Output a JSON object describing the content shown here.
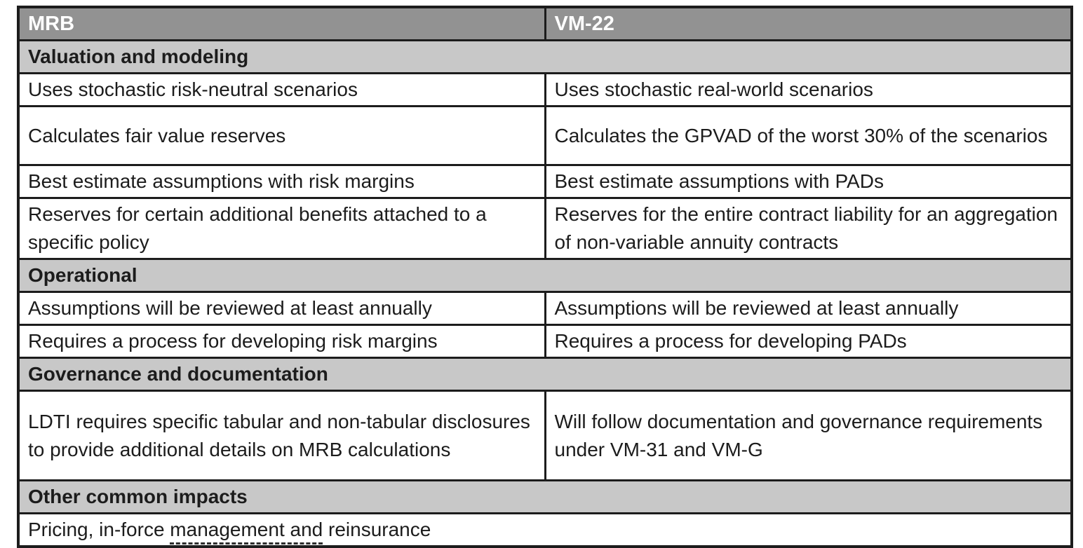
{
  "colors": {
    "header_bg": "#929292",
    "header_text": "#ffffff",
    "section_bg": "#c8c8c8",
    "body_text": "#1c1c1c",
    "border": "#1c1c1c"
  },
  "header": {
    "mrb": "MRB",
    "vm22": "VM-22"
  },
  "sections": [
    {
      "title": "Valuation and modeling",
      "rows": [
        {
          "mrb": "Uses stochastic risk-neutral scenarios",
          "vm22": "Uses stochastic real-world scenarios"
        },
        {
          "mrb": "Calculates fair value reserves",
          "vm22": "Calculates the GPVAD of the worst 30% of the scenarios"
        },
        {
          "mrb": "Best estimate assumptions with risk margins",
          "vm22": "Best estimate assumptions with PADs"
        },
        {
          "mrb": "Reserves for certain additional benefits attached to a specific policy",
          "vm22": "Reserves for the entire contract liability for an aggregation of non-variable annuity contracts"
        }
      ]
    },
    {
      "title": "Operational",
      "rows": [
        {
          "mrb": "Assumptions will be reviewed at least annually",
          "vm22": "Assumptions will be reviewed at least annually"
        },
        {
          "mrb": "Requires a process for developing risk margins",
          "vm22": "Requires a process for developing PADs"
        }
      ]
    },
    {
      "title": "Governance and documentation",
      "rows": [
        {
          "mrb": "LDTI requires specific tabular and non-tabular disclosures to provide additional details on MRB calculations",
          "vm22": "Will follow documentation and governance requirements under VM-31 and VM-G"
        }
      ]
    },
    {
      "title": "Other common impacts",
      "full_row": {
        "text_before": "Pricing, in-force ",
        "text_underlined": "management and",
        "text_after": " reinsurance"
      }
    }
  ]
}
